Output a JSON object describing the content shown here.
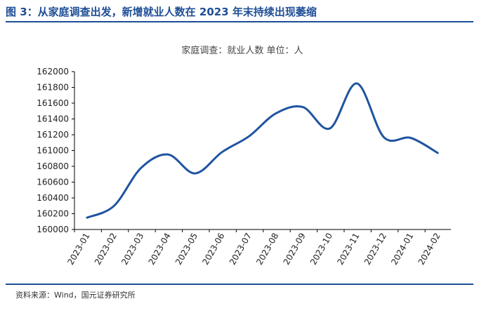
{
  "figure": {
    "title": "图 3：从家庭调查出发，新增就业人数在 2023 年末持续出现萎缩",
    "source": "资料来源：Wind，国元证券研究所"
  },
  "colors": {
    "accent": "#1f4e96",
    "series": "#1f54a0"
  },
  "chart_data": {
    "type": "line",
    "title": "家庭调查：就业人数 单位：人",
    "xlabel": "",
    "ylabel": "",
    "categories": [
      "2023-01",
      "2023-02",
      "2023-03",
      "2023-04",
      "2023-05",
      "2023-06",
      "2023-07",
      "2023-08",
      "2023-09",
      "2023-10",
      "2023-11",
      "2023-12",
      "2024-01",
      "2024-02"
    ],
    "series": [
      {
        "values": [
          160150,
          160300,
          160780,
          160950,
          160710,
          160980,
          161180,
          161470,
          161550,
          161280,
          161850,
          161170,
          161160,
          160970
        ]
      }
    ],
    "ylim": [
      160000,
      162000
    ],
    "yticks": [
      160000,
      160200,
      160400,
      160600,
      160800,
      161000,
      161200,
      161400,
      161600,
      161800,
      162000
    ],
    "grid": false,
    "legend": "none"
  }
}
